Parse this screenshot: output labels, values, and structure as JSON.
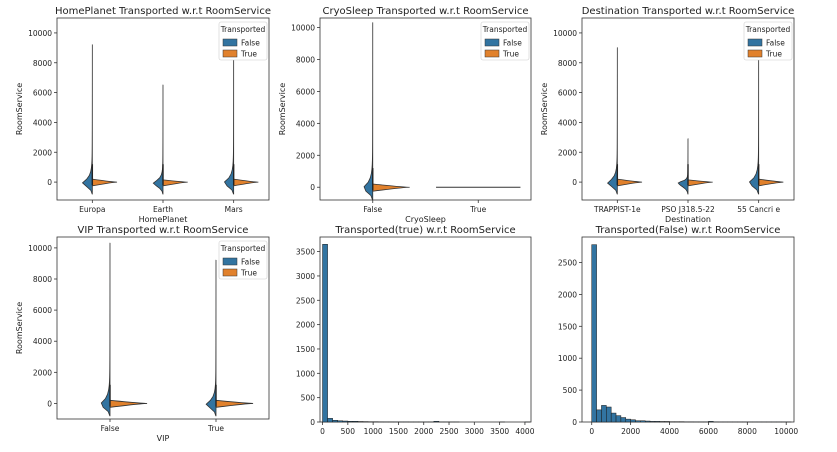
{
  "colors": {
    "false": "#3274a1",
    "true": "#e1812c",
    "edge": "#333333"
  },
  "chart_data": [
    {
      "type": "violin",
      "title": "HomePlanet Transported w.r.t RoomService",
      "xlabel": "HomePlanet",
      "ylabel": "RoomService",
      "categories": [
        "Europa",
        "Earth",
        "Mars"
      ],
      "ylim": [
        -1200,
        11000
      ],
      "yticks": [
        0,
        2000,
        4000,
        6000,
        8000,
        10000
      ],
      "legend": {
        "title": "Transported",
        "entries": [
          "False",
          "True"
        ],
        "position": "top-right"
      },
      "series": [
        {
          "name": "False",
          "max": [
            9200,
            6500,
            10000
          ]
        },
        {
          "name": "True",
          "max": [
            200,
            150,
            200
          ]
        }
      ]
    },
    {
      "type": "violin",
      "title": "CryoSleep Transported w.r.t RoomService",
      "xlabel": "CryoSleep",
      "ylabel": "RoomService",
      "categories": [
        "False",
        "True"
      ],
      "ylim": [
        -800,
        10600
      ],
      "yticks": [
        0,
        2000,
        4000,
        6000,
        8000,
        10000
      ],
      "legend": {
        "title": "Transported",
        "entries": [
          "False",
          "True"
        ],
        "position": "top-right"
      },
      "series": [
        {
          "name": "False",
          "max": [
            10300,
            0
          ]
        },
        {
          "name": "True",
          "max": [
            200,
            0
          ]
        }
      ]
    },
    {
      "type": "violin",
      "title": "Destination Transported w.r.t RoomService",
      "xlabel": "Destination",
      "ylabel": "RoomService",
      "categories": [
        "TRAPPIST-1e",
        "PSO J318.5-22",
        "55 Cancri e"
      ],
      "ylim": [
        -1200,
        11000
      ],
      "yticks": [
        0,
        2000,
        4000,
        6000,
        8000,
        10000
      ],
      "legend": {
        "title": "Transported",
        "entries": [
          "False",
          "True"
        ],
        "position": "top-right"
      },
      "series": [
        {
          "name": "False",
          "max": [
            9000,
            2900,
            10000
          ]
        },
        {
          "name": "True",
          "max": [
            200,
            150,
            200
          ]
        }
      ]
    },
    {
      "type": "violin",
      "title": "VIP Transported w.r.t RoomService",
      "xlabel": "VIP",
      "ylabel": "RoomService",
      "categories": [
        "False",
        "True"
      ],
      "ylim": [
        -1000,
        10700
      ],
      "yticks": [
        0,
        2000,
        4000,
        6000,
        8000,
        10000
      ],
      "legend": {
        "title": "Transported",
        "entries": [
          "False",
          "True"
        ],
        "position": "top-right"
      },
      "series": [
        {
          "name": "False",
          "max": [
            10300,
            9200
          ]
        },
        {
          "name": "True",
          "max": [
            200,
            200
          ]
        }
      ]
    },
    {
      "type": "bar",
      "title": "Transported(true) w.r.t RoomService",
      "xlim": [
        -50,
        4120
      ],
      "ylim": [
        0,
        3800
      ],
      "xticks": [
        0,
        500,
        1000,
        1500,
        2000,
        2500,
        3000,
        3500,
        4000
      ],
      "yticks": [
        0,
        500,
        1000,
        1500,
        2000,
        2500,
        3000,
        3500
      ],
      "bin_start": 0,
      "bin_width": 100,
      "counts": [
        3650,
        75,
        35,
        25,
        20,
        15,
        15,
        10,
        8,
        6,
        6,
        4,
        3,
        3,
        2,
        2,
        2,
        1,
        1,
        1,
        1,
        1,
        15,
        1,
        1,
        1,
        1,
        0,
        0,
        0,
        0,
        0,
        0,
        0,
        0,
        1,
        0,
        0,
        0,
        0,
        1
      ]
    },
    {
      "type": "bar",
      "title": "Transported(False) w.r.t RoomService",
      "xlim": [
        -500,
        10400
      ],
      "ylim": [
        0,
        2900
      ],
      "xticks": [
        0,
        2000,
        4000,
        6000,
        8000,
        10000
      ],
      "yticks": [
        0,
        500,
        1000,
        1500,
        2000,
        2500
      ],
      "bin_start": 0,
      "bin_width": 250,
      "counts": [
        2780,
        190,
        260,
        235,
        140,
        100,
        70,
        45,
        35,
        20,
        20,
        15,
        10,
        10,
        8,
        8,
        5,
        5,
        5,
        3,
        3,
        2,
        2,
        2,
        10,
        2,
        1,
        1,
        1,
        1,
        1,
        1,
        1,
        1,
        1,
        1,
        1,
        1,
        1,
        1,
        1
      ]
    }
  ]
}
